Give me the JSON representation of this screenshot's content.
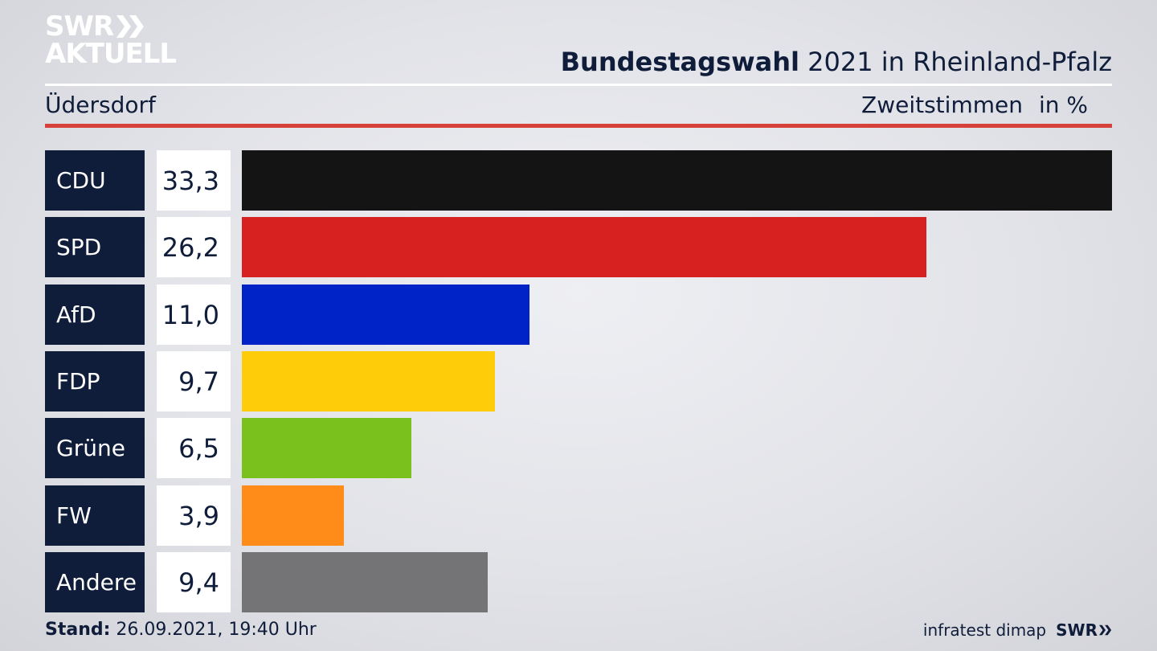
{
  "brand": {
    "line1": "SWR",
    "line2": "AKTUELL"
  },
  "header": {
    "title_bold": "Bundestagswahl",
    "title_rest": " 2021 in Rheinland-Pfalz",
    "region": "Üdersdorf",
    "measure": "Zweitstimmen",
    "unit": "in %"
  },
  "chart_data": {
    "type": "bar",
    "orientation": "horizontal",
    "categories": [
      "CDU",
      "SPD",
      "AfD",
      "FDP",
      "Grüne",
      "FW",
      "Andere"
    ],
    "values": [
      33.3,
      26.2,
      11.0,
      9.7,
      6.5,
      3.9,
      9.4
    ],
    "value_labels": [
      "33,3",
      "26,2",
      "11,0",
      "9,7",
      "6,5",
      "3,9",
      "9,4"
    ],
    "colors": [
      "#141414",
      "#d72020",
      "#0023c8",
      "#ffcc0a",
      "#7ac11e",
      "#ff8c19",
      "#747476"
    ],
    "xlim": [
      0,
      33.3
    ]
  },
  "footer": {
    "stand_label": "Stand:",
    "stand_value": " 26.09.2021, 19:40 Uhr",
    "source": "infratest dimap",
    "brand": "SWR"
  }
}
